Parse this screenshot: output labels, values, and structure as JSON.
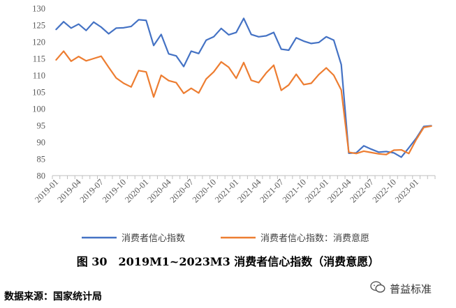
{
  "chart_data": {
    "type": "line",
    "title": "",
    "xlabel": "",
    "ylabel": "",
    "ylim": [
      80,
      130
    ],
    "yticks": [
      80,
      85,
      90,
      95,
      100,
      105,
      110,
      115,
      120,
      125,
      130
    ],
    "x": [
      "2019-01",
      "2019-02",
      "2019-03",
      "2019-04",
      "2019-05",
      "2019-06",
      "2019-07",
      "2019-08",
      "2019-09",
      "2019-10",
      "2019-11",
      "2019-12",
      "2020-01",
      "2020-02",
      "2020-03",
      "2020-04",
      "2020-05",
      "2020-06",
      "2020-07",
      "2020-08",
      "2020-09",
      "2020-10",
      "2020-11",
      "2020-12",
      "2021-01",
      "2021-02",
      "2021-03",
      "2021-04",
      "2021-05",
      "2021-06",
      "2021-07",
      "2021-08",
      "2021-09",
      "2021-10",
      "2021-11",
      "2021-12",
      "2022-01",
      "2022-02",
      "2022-03",
      "2022-04",
      "2022-05",
      "2022-06",
      "2022-07",
      "2022-08",
      "2022-09",
      "2022-10",
      "2022-11",
      "2022-12",
      "2023-01",
      "2023-02",
      "2023-03"
    ],
    "xtick_labels": [
      "2019-01",
      "2019-04",
      "2019-07",
      "2019-10",
      "2020-01",
      "2020-04",
      "2020-07",
      "2020-10",
      "2021-01",
      "2021-04",
      "2021-07",
      "2021-10",
      "2022-01",
      "2022-04",
      "2022-07",
      "2022-10",
      "2023-01"
    ],
    "series": [
      {
        "name": "消费者信心指数",
        "color": "#4472C4",
        "values": [
          123.7,
          126.0,
          124.1,
          125.3,
          123.4,
          125.9,
          124.4,
          122.4,
          124.1,
          124.2,
          124.6,
          126.6,
          126.4,
          118.9,
          122.2,
          116.4,
          115.8,
          112.6,
          117.2,
          116.5,
          120.5,
          121.5,
          124.0,
          122.1,
          122.8,
          127.0,
          122.2,
          121.5,
          121.8,
          122.8,
          117.8,
          117.5,
          121.2,
          120.2,
          119.5,
          119.8,
          121.5,
          120.5,
          113.2,
          86.7,
          86.8,
          88.9,
          87.9,
          87.0,
          87.2,
          86.8,
          85.5,
          88.3,
          91.2,
          94.7,
          94.9
        ]
      },
      {
        "name": "消费者信心指数：消费意愿",
        "color": "#ED7D31",
        "values": [
          114.6,
          117.2,
          114.2,
          115.6,
          114.3,
          115.0,
          115.7,
          112.4,
          109.2,
          107.6,
          106.5,
          111.4,
          111.0,
          103.5,
          110.0,
          108.4,
          107.8,
          104.6,
          106.1,
          104.7,
          108.9,
          111.0,
          114.0,
          112.4,
          109.1,
          113.8,
          108.5,
          107.8,
          110.7,
          113.0,
          105.5,
          107.1,
          110.3,
          107.2,
          107.6,
          110.2,
          112.2,
          110.0,
          105.6,
          87.0,
          86.6,
          87.3,
          86.9,
          86.5,
          86.3,
          87.6,
          87.7,
          86.6,
          90.8,
          94.4,
          94.8
        ]
      }
    ],
    "legend_position": "bottom",
    "grid": false
  },
  "caption": "图 30　2019M1~2023M3 消费者信心指数（消费意愿）",
  "source": "数据来源：国家统计局",
  "brand": {
    "text": "普益标准",
    "icon": "wechat-icon"
  }
}
